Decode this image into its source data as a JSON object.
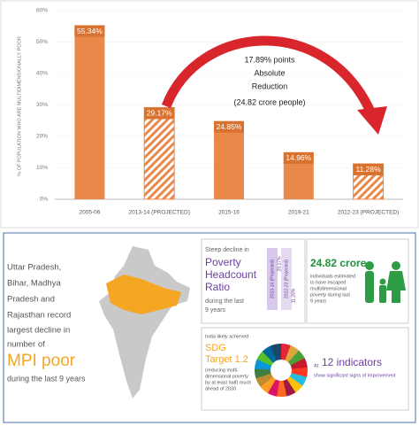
{
  "chart_data": {
    "type": "bar",
    "y_label": "% OF POPULATION WHO ARE MULTIDIMENSIONALLY POOR",
    "categories": [
      "2005-06",
      "2013-14 (PROJECTED)",
      "2015-16",
      "2019-21",
      "2022-23 (PROJECTED)"
    ],
    "values": [
      55.34,
      29.17,
      24.85,
      14.96,
      11.28
    ],
    "value_labels": [
      "55.34%",
      "29.17%",
      "24.85%",
      "14.96%",
      "11.28%"
    ],
    "hatched": [
      false,
      true,
      false,
      false,
      true
    ],
    "color": "#e8894a",
    "label_color": "#d9722f",
    "ylim": [
      0,
      60
    ],
    "yticks": [
      {
        "value": 0,
        "label": "0%"
      },
      {
        "value": 10,
        "label": "10%"
      },
      {
        "value": 20,
        "label": "20%"
      },
      {
        "value": 30,
        "label": "30%"
      },
      {
        "value": 40,
        "label": "40%"
      },
      {
        "value": 50,
        "label": "50%"
      },
      {
        "value": 60,
        "label": "60%"
      }
    ],
    "annotation": [
      "17.89% points",
      "Absolute",
      "Reduction",
      "(24.82 crore people)"
    ]
  },
  "panel": {
    "left_text": [
      "Uttar Pradesh,",
      "Bihar, Madhya",
      "Pradesh and",
      "Rajasthan record",
      "largest decline in",
      "number of"
    ],
    "left_highlight": "MPI poor",
    "left_footer": "during the last 9 years",
    "headcount": {
      "intro": "Steep decline in",
      "title": [
        "Poverty",
        "Headcount",
        "Ratio"
      ],
      "footer": [
        "during the last",
        "9 years"
      ],
      "bars": [
        {
          "label": "2013-14 (Projected)",
          "value_label": "29.17%"
        },
        {
          "label": "2022-23 (Projected)",
          "value_label": "11.28%"
        }
      ]
    },
    "escaped": {
      "title": "24.82 crore",
      "text": [
        "individuals estimated",
        "to have escaped",
        "multidimensional",
        "poverty during last",
        "9 years"
      ]
    },
    "sdg": {
      "intro": "India likely achieved",
      "title": [
        "SDG",
        "Target 1.2"
      ],
      "text": [
        "(reducing multi-",
        "dimensional poverty",
        "by at least half) much",
        "ahead of 2030"
      ]
    },
    "indicators": {
      "prefix": "At",
      "title": "12 indicators",
      "text": "show significant signs of improvement"
    }
  }
}
